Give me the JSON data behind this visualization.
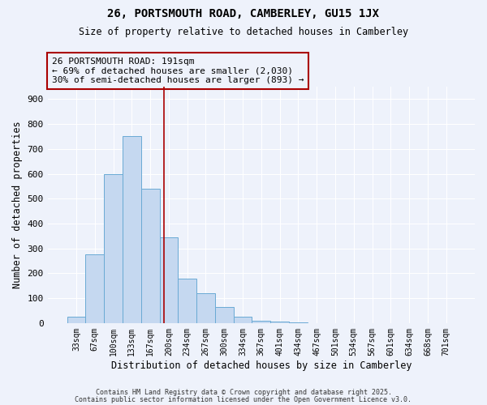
{
  "title": "26, PORTSMOUTH ROAD, CAMBERLEY, GU15 1JX",
  "subtitle": "Size of property relative to detached houses in Camberley",
  "xlabel": "Distribution of detached houses by size in Camberley",
  "ylabel": "Number of detached properties",
  "bin_labels": [
    "33sqm",
    "67sqm",
    "100sqm",
    "133sqm",
    "167sqm",
    "200sqm",
    "234sqm",
    "267sqm",
    "300sqm",
    "334sqm",
    "367sqm",
    "401sqm",
    "434sqm",
    "467sqm",
    "501sqm",
    "534sqm",
    "567sqm",
    "601sqm",
    "634sqm",
    "668sqm",
    "701sqm"
  ],
  "bar_values": [
    25,
    275,
    600,
    750,
    540,
    345,
    178,
    120,
    65,
    25,
    10,
    5,
    2,
    0,
    0,
    1,
    0,
    0,
    0,
    0,
    0
  ],
  "bar_color": "#c5d8f0",
  "bar_edge_color": "#6aaad4",
  "bar_width": 1.0,
  "vline_x": 4.73,
  "vline_color": "#aa0000",
  "annotation_box_text": "26 PORTSMOUTH ROAD: 191sqm\n← 69% of detached houses are smaller (2,030)\n30% of semi-detached houses are larger (893) →",
  "box_border_color": "#aa0000",
  "ylim": [
    0,
    950
  ],
  "yticks": [
    0,
    100,
    200,
    300,
    400,
    500,
    600,
    700,
    800,
    900
  ],
  "background_color": "#eef2fb",
  "grid_color": "#ffffff",
  "footer_line1": "Contains HM Land Registry data © Crown copyright and database right 2025.",
  "footer_line2": "Contains public sector information licensed under the Open Government Licence v3.0."
}
